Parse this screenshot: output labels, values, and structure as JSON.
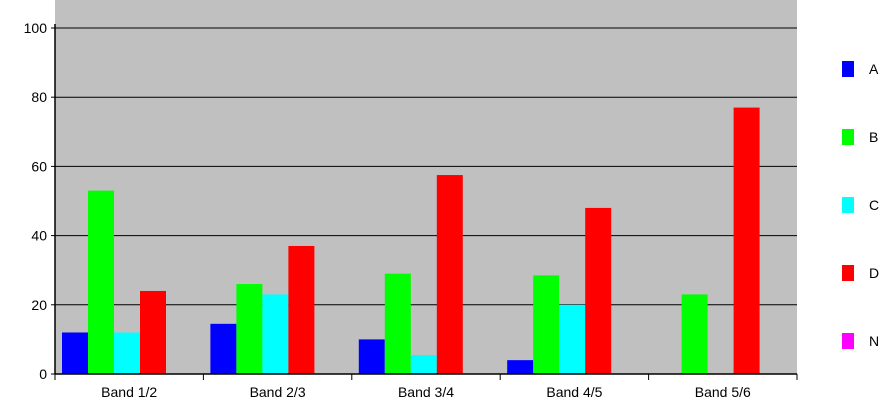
{
  "chart_data": {
    "type": "bar",
    "title": "",
    "xlabel": "",
    "ylabel": "",
    "categories": [
      "Band 1/2",
      "Band 2/3",
      "Band 3/4",
      "Band 4/5",
      "Band 5/6"
    ],
    "series": [
      {
        "name": "A",
        "color": "#0000ff",
        "values": [
          12,
          14.5,
          10,
          4,
          0
        ]
      },
      {
        "name": "B",
        "color": "#00ff00",
        "values": [
          53,
          26,
          29,
          28.5,
          23
        ]
      },
      {
        "name": "C",
        "color": "#00ffff",
        "values": [
          12,
          23,
          5.5,
          20,
          0
        ]
      },
      {
        "name": "D",
        "color": "#ff0000",
        "values": [
          24,
          37,
          57.5,
          48,
          77
        ]
      },
      {
        "name": "N",
        "color": "#ff00ff",
        "values": [
          0,
          0,
          0,
          0,
          0
        ]
      }
    ],
    "ylim": [
      0,
      100
    ],
    "yticks": [
      "0",
      "20",
      "40",
      "60",
      "80",
      "100"
    ],
    "grid": true,
    "legend_position": "right",
    "plot_background": "#c0c0c0"
  }
}
